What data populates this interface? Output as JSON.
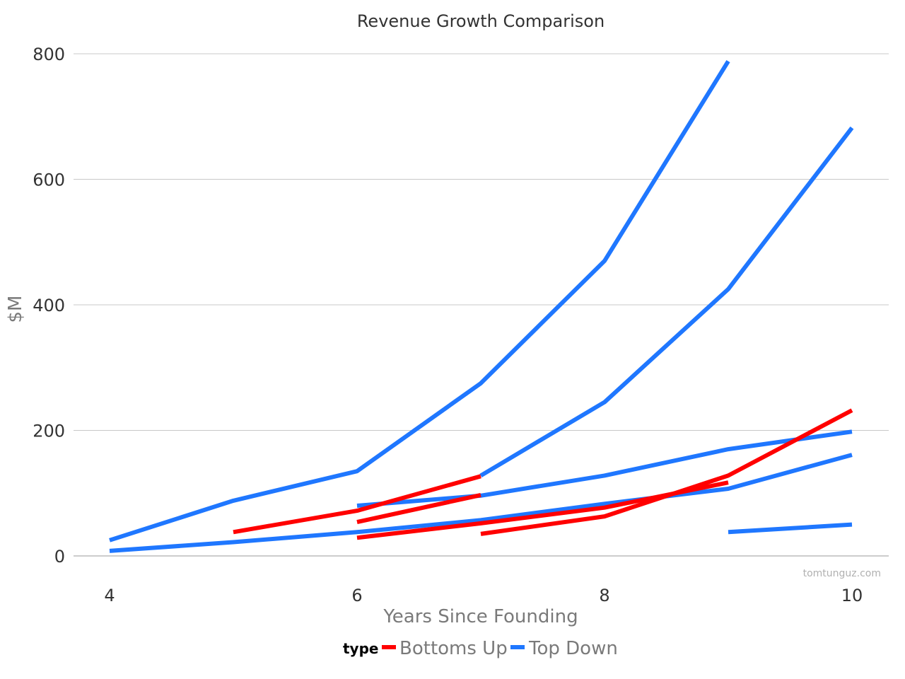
{
  "chart_data": {
    "type": "line",
    "title": "Revenue Growth Comparison",
    "xlabel": "Years Since Founding",
    "ylabel": "$M",
    "xlim": [
      4,
      10
    ],
    "ylim": [
      0,
      800
    ],
    "x_ticks": [
      "4",
      "6",
      "8",
      "10"
    ],
    "x_tick_values": [
      4,
      6,
      8,
      10
    ],
    "y_ticks": [
      "0",
      "200",
      "400",
      "600",
      "800"
    ],
    "y_tick_values": [
      0,
      200,
      400,
      600,
      800
    ],
    "grid": true,
    "legend": {
      "title": "type",
      "placement": "bottom",
      "entries": [
        {
          "label": "Bottoms Up",
          "color": "#ff0000"
        },
        {
          "label": "Top Down",
          "color": "#1f77ff"
        }
      ]
    },
    "series": [
      {
        "group": "Top Down",
        "color": "#1f77ff",
        "points": [
          [
            4,
            25
          ],
          [
            5,
            88
          ],
          [
            6,
            135
          ],
          [
            7,
            275
          ],
          [
            8,
            470
          ],
          [
            9,
            788
          ]
        ]
      },
      {
        "group": "Top Down",
        "color": "#1f77ff",
        "points": [
          [
            7,
            128
          ],
          [
            8,
            245
          ],
          [
            9,
            425
          ],
          [
            10,
            682
          ]
        ]
      },
      {
        "group": "Top Down",
        "color": "#1f77ff",
        "points": [
          [
            6,
            80
          ],
          [
            7,
            96
          ],
          [
            8,
            128
          ],
          [
            9,
            170
          ],
          [
            10,
            198
          ]
        ]
      },
      {
        "group": "Top Down",
        "color": "#1f77ff",
        "points": [
          [
            4,
            8
          ],
          [
            5,
            22
          ],
          [
            6,
            38
          ],
          [
            7,
            57
          ],
          [
            8,
            83
          ],
          [
            9,
            107
          ],
          [
            10,
            161
          ]
        ]
      },
      {
        "group": "Top Down",
        "color": "#1f77ff",
        "points": [
          [
            9,
            38
          ],
          [
            10,
            50
          ]
        ]
      },
      {
        "group": "Bottoms Up",
        "color": "#ff0000",
        "points": [
          [
            5,
            38
          ],
          [
            6,
            72
          ],
          [
            7,
            127
          ]
        ]
      },
      {
        "group": "Bottoms Up",
        "color": "#ff0000",
        "points": [
          [
            6,
            54
          ],
          [
            7,
            97
          ]
        ]
      },
      {
        "group": "Bottoms Up",
        "color": "#ff0000",
        "points": [
          [
            6,
            29
          ],
          [
            7,
            52
          ],
          [
            8,
            77
          ],
          [
            9,
            117
          ]
        ]
      },
      {
        "group": "Bottoms Up",
        "color": "#ff0000",
        "points": [
          [
            7,
            35
          ],
          [
            8,
            63
          ],
          [
            9,
            128
          ],
          [
            10,
            232
          ]
        ]
      }
    ]
  },
  "watermark": "tomtunguz.com"
}
